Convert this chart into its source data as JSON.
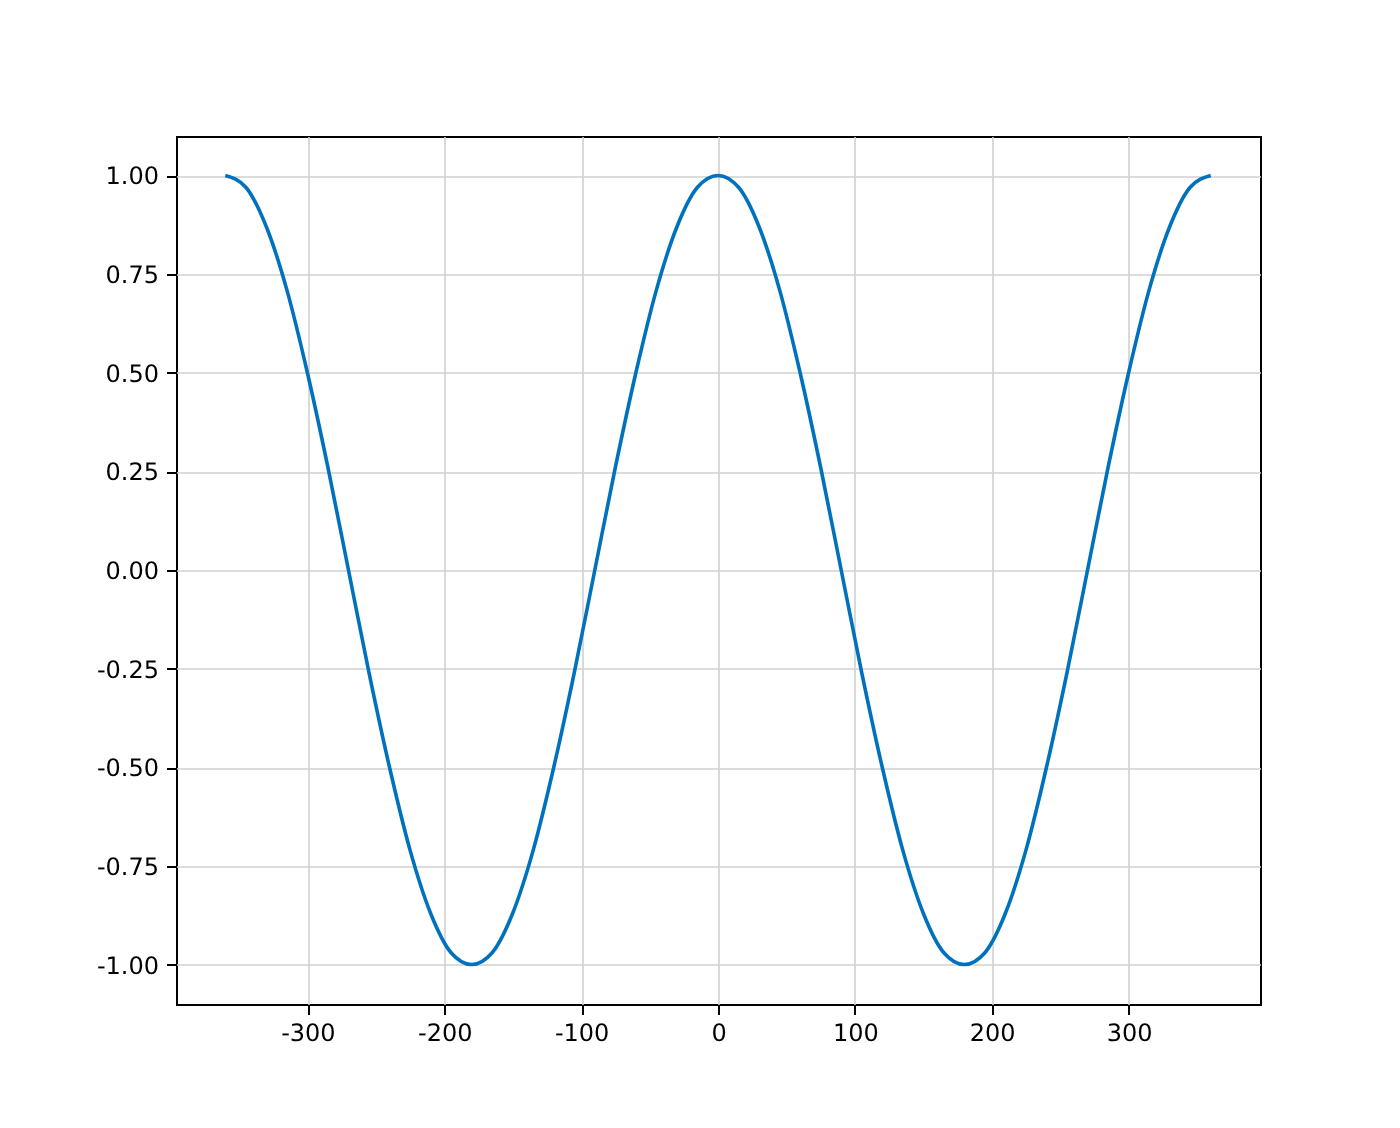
{
  "chart_data": {
    "type": "line",
    "x": [
      -360,
      -345,
      -330,
      -315,
      -300,
      -285,
      -270,
      -255,
      -240,
      -225,
      -210,
      -195,
      -180,
      -165,
      -150,
      -135,
      -120,
      -105,
      -90,
      -75,
      -60,
      -45,
      -30,
      -15,
      0,
      15,
      30,
      45,
      60,
      75,
      90,
      105,
      120,
      135,
      150,
      165,
      180,
      195,
      210,
      225,
      240,
      255,
      270,
      285,
      300,
      315,
      330,
      345,
      360
    ],
    "series": [
      {
        "color": "#0072bd",
        "values": [
          1,
          0.97,
          0.87,
          0.71,
          0.5,
          0.26,
          0,
          -0.26,
          -0.5,
          -0.71,
          -0.87,
          -0.97,
          -1,
          -0.97,
          -0.87,
          -0.71,
          -0.5,
          -0.26,
          0,
          0.26,
          0.5,
          0.71,
          0.87,
          0.97,
          1,
          0.97,
          0.87,
          0.71,
          0.5,
          0.26,
          0,
          -0.26,
          -0.5,
          -0.71,
          -0.87,
          -0.97,
          -1,
          -0.97,
          -0.87,
          -0.71,
          -0.5,
          -0.26,
          0,
          0.26,
          0.5,
          0.71,
          0.87,
          0.97,
          1
        ]
      }
    ],
    "xlim": [
      -396,
      396
    ],
    "xticks": [
      -300,
      -200,
      -100,
      0,
      100,
      200,
      300
    ],
    "ylim": [
      -1.1,
      1.1
    ],
    "yticks": [
      {
        "value": -1,
        "label": "-1.00"
      },
      {
        "value": -0.75,
        "label": "-0.75"
      },
      {
        "value": -0.5,
        "label": "-0.50"
      },
      {
        "value": -0.25,
        "label": "-0.25"
      },
      {
        "value": 0,
        "label": "0.00"
      },
      {
        "value": 0.25,
        "label": "0.25"
      },
      {
        "value": 0.5,
        "label": "0.50"
      },
      {
        "value": 0.75,
        "label": "0.75"
      },
      {
        "value": 1,
        "label": "1.00"
      }
    ],
    "grid": true,
    "line_style": "solid"
  }
}
